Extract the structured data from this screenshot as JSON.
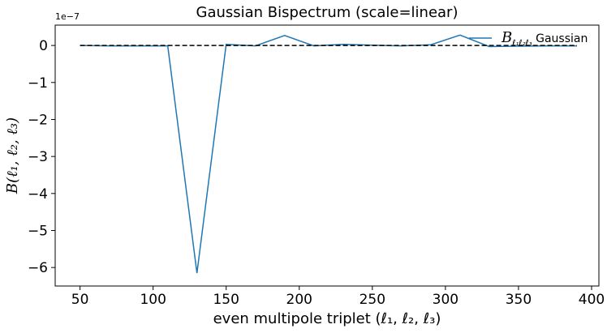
{
  "chart_data": {
    "type": "line",
    "title": "Gaussian Bispectrum (scale=linear)",
    "xlabel": "even multipole triplet (ℓ₁, ℓ₂, ℓ₃)",
    "ylabel": "B(ℓ₁, ℓ₂, ℓ₃)",
    "y_offset_label": "1e−7",
    "y_scale_factor": 1e-07,
    "xlim": [
      33,
      405
    ],
    "ylim": [
      -6.5,
      0.55
    ],
    "x_ticks": [
      50,
      100,
      150,
      200,
      250,
      300,
      350,
      400
    ],
    "y_ticks": [
      0,
      -1,
      -2,
      -3,
      -4,
      -5,
      -6
    ],
    "y_tick_labels": [
      "0",
      "−1",
      "−2",
      "−3",
      "−4",
      "−5",
      "−6"
    ],
    "grid": false,
    "legend_position": "top-right",
    "series": [
      {
        "name": "B_{ℓ₁ℓ₂ℓ₃} Gaussian",
        "color": "#1f77b4",
        "style": "solid",
        "x": [
          50,
          70,
          90,
          110,
          130,
          150,
          170,
          190,
          210,
          230,
          250,
          270,
          290,
          310,
          330,
          350,
          370,
          390
        ],
        "y": [
          0.0,
          -0.01,
          -0.01,
          -0.01,
          -6.15,
          0.03,
          -0.01,
          0.27,
          -0.01,
          0.03,
          0.01,
          -0.01,
          0.02,
          0.28,
          -0.03,
          -0.02,
          -0.01,
          -0.01
        ]
      },
      {
        "name": "",
        "color": "#000000",
        "style": "dashed",
        "x": [
          50,
          390
        ],
        "y": [
          0,
          0
        ]
      }
    ],
    "legend": {
      "label_main": "B",
      "label_sub": "ℓ₁ℓ₂ℓ₃",
      "label_rest": " Gaussian"
    }
  }
}
